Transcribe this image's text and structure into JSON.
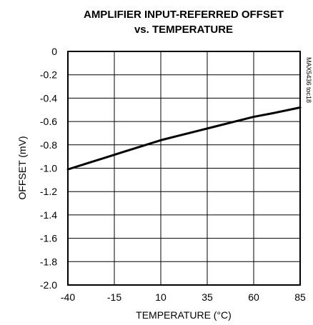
{
  "chart_data": {
    "type": "line",
    "title_line1": "AMPLIFIER INPUT-REFERRED OFFSET",
    "title_line2": "vs. TEMPERATURE",
    "xlabel": "TEMPERATURE (°C)",
    "ylabel": "OFFSET (mV)",
    "side_note": "MAX5436 toc18",
    "xlim": [
      -40,
      85
    ],
    "ylim": [
      -2.0,
      0
    ],
    "x_ticks": [
      -40,
      -15,
      10,
      35,
      60,
      85
    ],
    "x_tick_labels": [
      "-40",
      "-15",
      "10",
      "35",
      "60",
      "85"
    ],
    "y_ticks": [
      0,
      -0.2,
      -0.4,
      -0.6,
      -0.8,
      -1.0,
      -1.2,
      -1.4,
      -1.6,
      -1.8,
      -2.0
    ],
    "y_tick_labels": [
      "0",
      "-0.2",
      "-0.4",
      "-0.6",
      "-0.8",
      "-1.0",
      "-1.2",
      "-1.4",
      "-1.6",
      "-1.8",
      "-2.0"
    ],
    "grid": true,
    "series": [
      {
        "x": [
          -40,
          -30,
          -20,
          -10,
          0,
          10,
          20,
          30,
          40,
          50,
          60,
          70,
          85
        ],
        "y": [
          -1.01,
          -0.96,
          -0.91,
          -0.86,
          -0.81,
          -0.76,
          -0.72,
          -0.68,
          -0.64,
          -0.6,
          -0.56,
          -0.53,
          -0.48
        ]
      }
    ],
    "line_color": "#000000"
  }
}
